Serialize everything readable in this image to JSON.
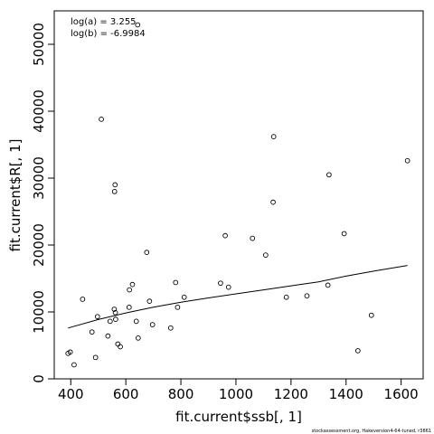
{
  "chart_data": {
    "type": "scatter",
    "xlabel": "fit.current$ssb[, 1]",
    "ylabel": "fit.current$R[, 1]",
    "xlim": [
      340,
      1680
    ],
    "ylim": [
      0,
      55000
    ],
    "x_ticks": [
      400,
      600,
      800,
      1000,
      1200,
      1400,
      1600
    ],
    "y_ticks": [
      0,
      10000,
      20000,
      30000,
      40000,
      50000
    ],
    "annotations": [
      "log(a) = 3.255",
      "log(b) = -6.9984"
    ],
    "footer": "stockassessment.org, Hakeversion4-64-tuned, r3861",
    "points": [
      {
        "x": 390,
        "y": 3800
      },
      {
        "x": 398,
        "y": 4000
      },
      {
        "x": 412,
        "y": 2100
      },
      {
        "x": 443,
        "y": 11900
      },
      {
        "x": 477,
        "y": 7000
      },
      {
        "x": 490,
        "y": 3200
      },
      {
        "x": 497,
        "y": 9300
      },
      {
        "x": 511,
        "y": 38800
      },
      {
        "x": 535,
        "y": 6400
      },
      {
        "x": 543,
        "y": 8600
      },
      {
        "x": 558,
        "y": 10400
      },
      {
        "x": 559,
        "y": 28000
      },
      {
        "x": 561,
        "y": 29000
      },
      {
        "x": 562,
        "y": 9900
      },
      {
        "x": 563,
        "y": 8900
      },
      {
        "x": 571,
        "y": 5200
      },
      {
        "x": 580,
        "y": 4800
      },
      {
        "x": 612,
        "y": 10700
      },
      {
        "x": 613,
        "y": 13300
      },
      {
        "x": 624,
        "y": 14100
      },
      {
        "x": 638,
        "y": 8600
      },
      {
        "x": 643,
        "y": 52900
      },
      {
        "x": 645,
        "y": 6100
      },
      {
        "x": 676,
        "y": 18900
      },
      {
        "x": 686,
        "y": 11600
      },
      {
        "x": 697,
        "y": 8100
      },
      {
        "x": 763,
        "y": 7600
      },
      {
        "x": 781,
        "y": 14400
      },
      {
        "x": 788,
        "y": 10700
      },
      {
        "x": 812,
        "y": 12200
      },
      {
        "x": 944,
        "y": 14300
      },
      {
        "x": 961,
        "y": 21400
      },
      {
        "x": 973,
        "y": 13700
      },
      {
        "x": 1060,
        "y": 21000
      },
      {
        "x": 1108,
        "y": 18500
      },
      {
        "x": 1135,
        "y": 26400
      },
      {
        "x": 1137,
        "y": 36200
      },
      {
        "x": 1183,
        "y": 12200
      },
      {
        "x": 1258,
        "y": 12400
      },
      {
        "x": 1334,
        "y": 14000
      },
      {
        "x": 1338,
        "y": 30500
      },
      {
        "x": 1393,
        "y": 21700
      },
      {
        "x": 1443,
        "y": 4200
      },
      {
        "x": 1492,
        "y": 9500
      },
      {
        "x": 1623,
        "y": 32600
      }
    ],
    "fit_curve": [
      {
        "x": 390,
        "y": 7600
      },
      {
        "x": 500,
        "y": 8860
      },
      {
        "x": 600,
        "y": 9850
      },
      {
        "x": 700,
        "y": 10700
      },
      {
        "x": 800,
        "y": 11450
      },
      {
        "x": 900,
        "y": 12100
      },
      {
        "x": 1000,
        "y": 12700
      },
      {
        "x": 1100,
        "y": 13300
      },
      {
        "x": 1200,
        "y": 13900
      },
      {
        "x": 1300,
        "y": 14500
      },
      {
        "x": 1400,
        "y": 15350
      },
      {
        "x": 1500,
        "y": 16100
      },
      {
        "x": 1623,
        "y": 16950
      }
    ]
  }
}
